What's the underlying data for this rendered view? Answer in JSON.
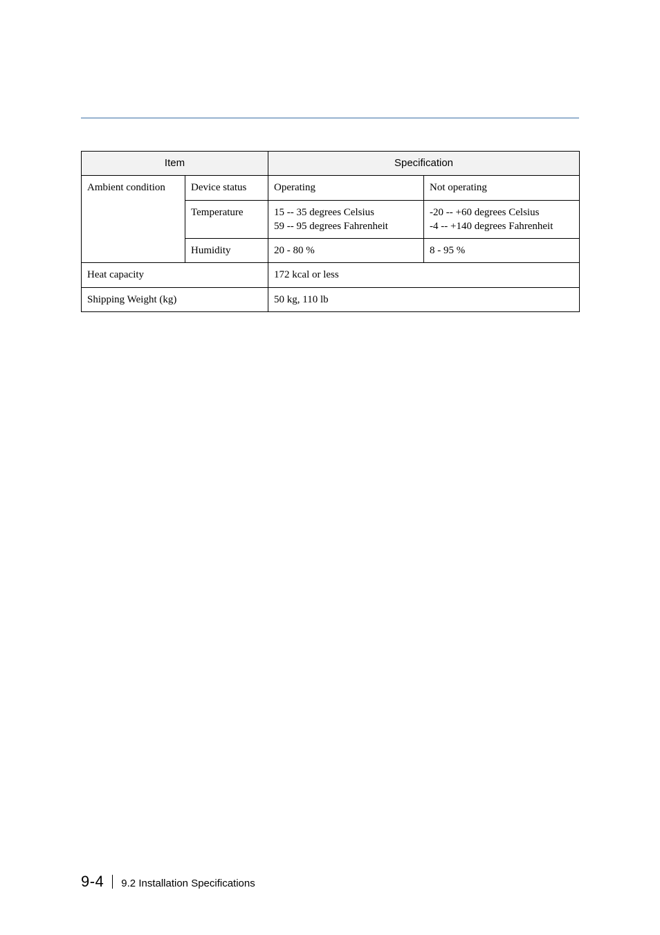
{
  "colors": {
    "rule": "#3a6ea5",
    "border": "#000000",
    "header_bg": "#f2f2f2",
    "text": "#000000",
    "page_bg": "#ffffff"
  },
  "table": {
    "headers": {
      "item": "Item",
      "spec": "Specification"
    },
    "rows": {
      "ambient_label": "Ambient condition",
      "device_status": {
        "label": "Device status",
        "operating": "Operating",
        "not_operating": "Not operating"
      },
      "temperature": {
        "label": "Temperature",
        "operating": "15 -- 35 degrees Celsius\n59 -- 95 degrees Fahrenheit",
        "not_operating": "-20 -- +60 degrees Celsius\n-4 -- +140 degrees Fahrenheit"
      },
      "humidity": {
        "label": "Humidity",
        "operating": "20 - 80 %",
        "not_operating": "8 - 95 %"
      },
      "heat_capacity": {
        "label": "Heat capacity",
        "value": "172 kcal or less"
      },
      "shipping_weight": {
        "label": "Shipping Weight (kg)",
        "value": "50 kg, 110 lb"
      }
    }
  },
  "footer": {
    "page_number": "9-4",
    "section": "9.2 Installation Specifications"
  }
}
